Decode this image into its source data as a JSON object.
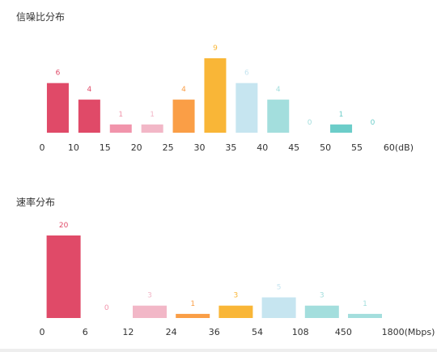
{
  "chart_data": [
    {
      "type": "bar",
      "title": "信噪比分布",
      "x_ticks": [
        "0",
        "10",
        "15",
        "20",
        "25",
        "30",
        "35",
        "40",
        "45",
        "50",
        "55",
        "60(dB)"
      ],
      "values": [
        6,
        4,
        1,
        1,
        4,
        9,
        6,
        4,
        0,
        1,
        0
      ],
      "colors": [
        "#e04a68",
        "#e04a68",
        "#f194ab",
        "#f2b7c7",
        "#fa9e46",
        "#f9b637",
        "#c6e5f0",
        "#a3dedd",
        "#a3dedd",
        "#6ccdc9",
        "#6ccdc9"
      ],
      "label_colors": [
        "#e04a68",
        "#e04a68",
        "#f194ab",
        "#f2b7c7",
        "#fa9e46",
        "#f9b637",
        "#c6e5f0",
        "#a3dedd",
        "#a3dedd",
        "#6ccdc9",
        "#6ccdc9"
      ]
    },
    {
      "type": "bar",
      "title": "速率分布",
      "x_ticks": [
        "0",
        "6",
        "12",
        "24",
        "36",
        "54",
        "108",
        "450",
        "1800(Mbps)"
      ],
      "values": [
        20,
        0,
        3,
        1,
        3,
        5,
        3,
        1
      ],
      "colors": [
        "#e04a68",
        "#f194ab",
        "#f2b7c7",
        "#fa9e46",
        "#f9b637",
        "#c6e5f0",
        "#a3dedd",
        "#a3dedd"
      ],
      "label_colors": [
        "#e04a68",
        "#f194ab",
        "#f2b7c7",
        "#fa9e46",
        "#f9b637",
        "#c6e5f0",
        "#a3dedd",
        "#a3dedd"
      ]
    }
  ]
}
